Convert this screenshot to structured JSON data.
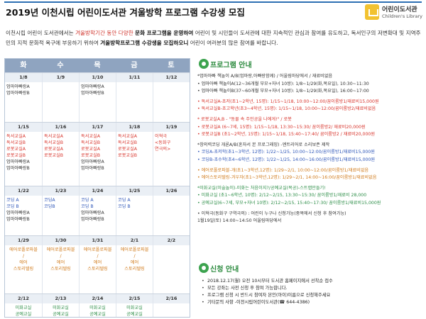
{
  "header": {
    "title": "2019년 이천시립 어린이도서관 겨울방학 프로그램 수강생 모집",
    "logo_text": "어린이도서관",
    "logo_sub": "Children's Library",
    "accent": "#2d6fb3"
  },
  "intro": {
    "p1": "이천시립 어린이 도서관에서는 ",
    "p2": "겨울방학기간 동안 다양한 ",
    "p3": "문화 프로그램을 운영하여",
    "p4": " 어린이 및 시민들이 도서관에 대한 지속적인 관심과 참여를 유도하고, 독서인구의",
    "p5": "저변확대 및 지역주민의 지적 문화적 욕구에 부응하기 위하여 ",
    "p6": "겨울방학프로그램 수강생을 모집하오니",
    "p7": " 어린이 여러분의 많은 참여를 바랍니다."
  },
  "calendar": {
    "days": [
      "화",
      "수",
      "목",
      "금",
      "토"
    ],
    "rows": [
      {
        "cells": [
          {
            "date": "1/8",
            "events": [
              {
                "t": "엄마아빠랑A",
                "c": "dark"
              },
              {
                "t": "엄마아빠랑B",
                "c": "dark"
              }
            ]
          },
          {
            "date": "1/9",
            "events": []
          },
          {
            "date": "1/10",
            "events": [
              {
                "t": "엄마아빠랑A",
                "c": "dark"
              },
              {
                "t": "엄마아빠랑B",
                "c": "dark"
              }
            ]
          },
          {
            "date": "1/11",
            "events": []
          },
          {
            "date": "1/12",
            "events": []
          }
        ]
      },
      {
        "cells": [
          {
            "date": "1/15",
            "events": [
              {
                "t": "독서교실A",
                "c": "red2"
              },
              {
                "t": "독서교실B",
                "c": "red2"
              },
              {
                "t": "로봇교실A",
                "c": "red2"
              },
              {
                "t": "로봇교실B",
                "c": "red2"
              },
              {
                "t": "엄마아빠랑A",
                "c": "dark"
              },
              {
                "t": "엄마아빠랑B",
                "c": "dark"
              }
            ]
          },
          {
            "date": "1/16",
            "events": [
              {
                "t": "독서교실A",
                "c": "red2"
              },
              {
                "t": "독서교실B",
                "c": "red2"
              },
              {
                "t": "로봇교실A",
                "c": "red2"
              },
              {
                "t": "로봇교실B",
                "c": "red2"
              }
            ]
          },
          {
            "date": "1/17",
            "events": [
              {
                "t": "독서교실A",
                "c": "red2"
              },
              {
                "t": "독서교실B",
                "c": "red2"
              },
              {
                "t": "로봇교실A",
                "c": "red2"
              },
              {
                "t": "로봇교실B",
                "c": "red2"
              },
              {
                "t": "엄마아빠랑A",
                "c": "dark"
              },
              {
                "t": "엄마아빠랑B",
                "c": "dark"
              }
            ]
          },
          {
            "date": "1/18",
            "events": [
              {
                "t": "독서교실A",
                "c": "red2"
              },
              {
                "t": "독서교실B",
                "c": "red2"
              },
              {
                "t": "로봇교실A",
                "c": "red2"
              },
              {
                "t": "로봇교실B",
                "c": "red2"
              }
            ]
          },
          {
            "date": "1/19",
            "events": [
              {
                "t": "이혁극",
                "c": "red2"
              },
              {
                "t": "<동화구",
                "c": "red2"
              },
              {
                "t": "연극의>",
                "c": "red2"
              }
            ]
          }
        ]
      },
      {
        "cells": [
          {
            "date": "1/22",
            "events": [
              {
                "t": "코딩 A",
                "c": "blue"
              },
              {
                "t": "코딩 B",
                "c": "blue"
              },
              {
                "t": "엄마아빠랑A",
                "c": "dark"
              },
              {
                "t": "엄마아빠랑B",
                "c": "dark"
              }
            ]
          },
          {
            "date": "1/23",
            "events": [
              {
                "t": "코딩A",
                "c": "blue"
              },
              {
                "t": "코딩B",
                "c": "blue"
              }
            ]
          },
          {
            "date": "1/24",
            "events": [
              {
                "t": "코딩 A",
                "c": "blue"
              },
              {
                "t": "코딩 B",
                "c": "blue"
              },
              {
                "t": "엄마아빠랑A",
                "c": "dark"
              },
              {
                "t": "엄마아빠랑B",
                "c": "dark"
              }
            ]
          },
          {
            "date": "1/25",
            "events": [
              {
                "t": "코딩 A",
                "c": "blue"
              },
              {
                "t": "코딩 B",
                "c": "blue"
              }
            ]
          },
          {
            "date": "1/26",
            "events": []
          }
        ]
      },
      {
        "cells": [
          {
            "date": "1/29",
            "events": [
              {
                "t": "에어로폴로파블",
                "c": "orange"
              },
              {
                "t": "/",
                "c": "orange"
              },
              {
                "t": "에어",
                "c": "orange"
              },
              {
                "t": "스토리텔링",
                "c": "orange"
              }
            ]
          },
          {
            "date": "1/30",
            "events": [
              {
                "t": "에어로폴로파블",
                "c": "orange"
              },
              {
                "t": "/",
                "c": "orange"
              },
              {
                "t": "에어",
                "c": "orange"
              },
              {
                "t": "스토리텔링",
                "c": "orange"
              }
            ]
          },
          {
            "date": "1/31",
            "events": [
              {
                "t": "에어로폴로파블",
                "c": "orange"
              },
              {
                "t": "/",
                "c": "orange"
              },
              {
                "t": "에어",
                "c": "orange"
              },
              {
                "t": "스토리텔링",
                "c": "orange"
              }
            ]
          },
          {
            "date": "2/1",
            "events": [
              {
                "t": "에어로폴로파블",
                "c": "orange"
              },
              {
                "t": "/",
                "c": "orange"
              },
              {
                "t": "에어",
                "c": "orange"
              },
              {
                "t": "스토리텔링",
                "c": "orange"
              }
            ]
          },
          {
            "date": "2/2",
            "events": []
          }
        ]
      },
      {
        "cells": [
          {
            "date": "2/12",
            "events": [
              {
                "t": "미화교실",
                "c": "green"
              },
              {
                "t": "공예교실",
                "c": "green"
              }
            ]
          },
          {
            "date": "2/13",
            "events": [
              {
                "t": "미화교실",
                "c": "green"
              },
              {
                "t": "공예교실",
                "c": "green"
              }
            ]
          },
          {
            "date": "2/14",
            "events": [
              {
                "t": "미화교실",
                "c": "green"
              },
              {
                "t": "공예교실",
                "c": "green"
              }
            ]
          },
          {
            "date": "2/15",
            "events": [
              {
                "t": "미화교실",
                "c": "green"
              },
              {
                "t": "공예교실",
                "c": "green"
              }
            ]
          },
          {
            "date": "2/16",
            "events": []
          }
        ]
      }
    ]
  },
  "program": {
    "heading": "프로그램 안내",
    "lines": [
      {
        "t": "*엄마아빠 책놀이 A/B(엄마랑,아빠랑함께) / 어울림마당에서 / 재료비없음",
        "c": "dark"
      },
      {
        "t": "• 엄마아빠 책놀이A(12~36개월 부모+자녀 10쌍): 1/8~1/29(화,목요일), 10:30~11:30",
        "c": "dark"
      },
      {
        "t": "• 엄마아빠 책놀이B(37~60개월 부모+자녀 10쌍): 1/8~1/29(화,목요일), 16:00~17:00",
        "c": "dark"
      },
      {
        "t": "",
        "c": "dark"
      },
      {
        "t": "• 독서교실A-초저(초1~2학년, 15명): 1/15~1/18, 10:00~12:00/꿈이룸방1/재료비15,000원",
        "c": "red2"
      },
      {
        "t": "• 독서교실B-초고학년(초3~4학년, 15명): 1/15~1/18, 10:00~12:00/꿈이룸방2/재료비없음",
        "c": "red2"
      },
      {
        "t": "",
        "c": "dark"
      },
      {
        "t": "* 로봇교실A,B - \"동물 속 주인공을 나에게!\" / 로봇",
        "c": "red2"
      },
      {
        "t": "• 로봇교실A (6~7세, 15명): 1/15~1/18, 13:30~15:30/ 꿈이룸방2/ 재료비20,000원",
        "c": "red2"
      },
      {
        "t": "• 로봇교실B (초1~2학년, 15명): 1/15~1/18, 15:40~17:40/ 꿈이룸방2 / 재료비20,000원",
        "c": "red2"
      },
      {
        "t": "",
        "c": "dark"
      },
      {
        "t": "*창의력코딩 개론A/B(혼자서 본 프로그래밍) -엔트리어로 소리보존 제작",
        "c": "dark"
      },
      {
        "t": "• 코딩A-초저학(초1~3학년, 12명): 1/22~1/25, 10:00~12:00/꿈이룸방1/재료비15,000원",
        "c": "blue"
      },
      {
        "t": "• 코딩B-초수학(초4~6학년, 12명): 1/22~1/25, 14:00~16:00/꿈이룸방1/재료비15,000원",
        "c": "blue"
      },
      {
        "t": "",
        "c": "dark"
      },
      {
        "t": "• 에어로폴로파블-개(초1~3학년,12명): 1/29~2/1, 10:00~12:00/꿈이룸방1/재료비없음",
        "c": "orange"
      },
      {
        "t": "• 에어스토리텔링-겨우자(초1~3학년,12명): 1/29~2/1, 14:00~16:00/꿈이룸방1/재료비없음",
        "c": "orange"
      },
      {
        "t": "",
        "c": "dark"
      },
      {
        "t": "*미화교실(미술놀이)-미화는 처음이지?/공예교실(목공)-스트랩만들기!",
        "c": "green"
      },
      {
        "t": "• 미화교실 (초1~6학년, 10명): 2/12~2/15, 13:30~15:30/ 꿈이룸방1/재료비 28,000",
        "c": "green"
      },
      {
        "t": "• 공예교실(6~7세, 부모+자녀 10명): 2/12~2/15, 15:40~17:30/ 꿈이룸방1/재료비15,000원",
        "c": "green"
      },
      {
        "t": "",
        "c": "dark"
      },
      {
        "t": "• 이혁극(동화구 구역극의) : 어린이 누구나 신청가능(중복에서 신청 후 참여가능)",
        "c": "dark"
      },
      {
        "t": "               1월19일(토) 14:00~14:50 어울림마당에서",
        "c": "dark"
      }
    ]
  },
  "apply": {
    "heading": "신청 안내",
    "items": [
      "2018.12.17(월) 오전 10시부터 도서관 홈페이지에서 선착순 접수",
      "모든 강좌는 사전 신청 후 참여 가능합니다.",
      "프로그램 신청 시 반드시 참여자 본인(아이)이름으로 신청해주세요",
      "기타문의 사항 -이천시립어린이도서관(☎ 644-4386)"
    ]
  }
}
